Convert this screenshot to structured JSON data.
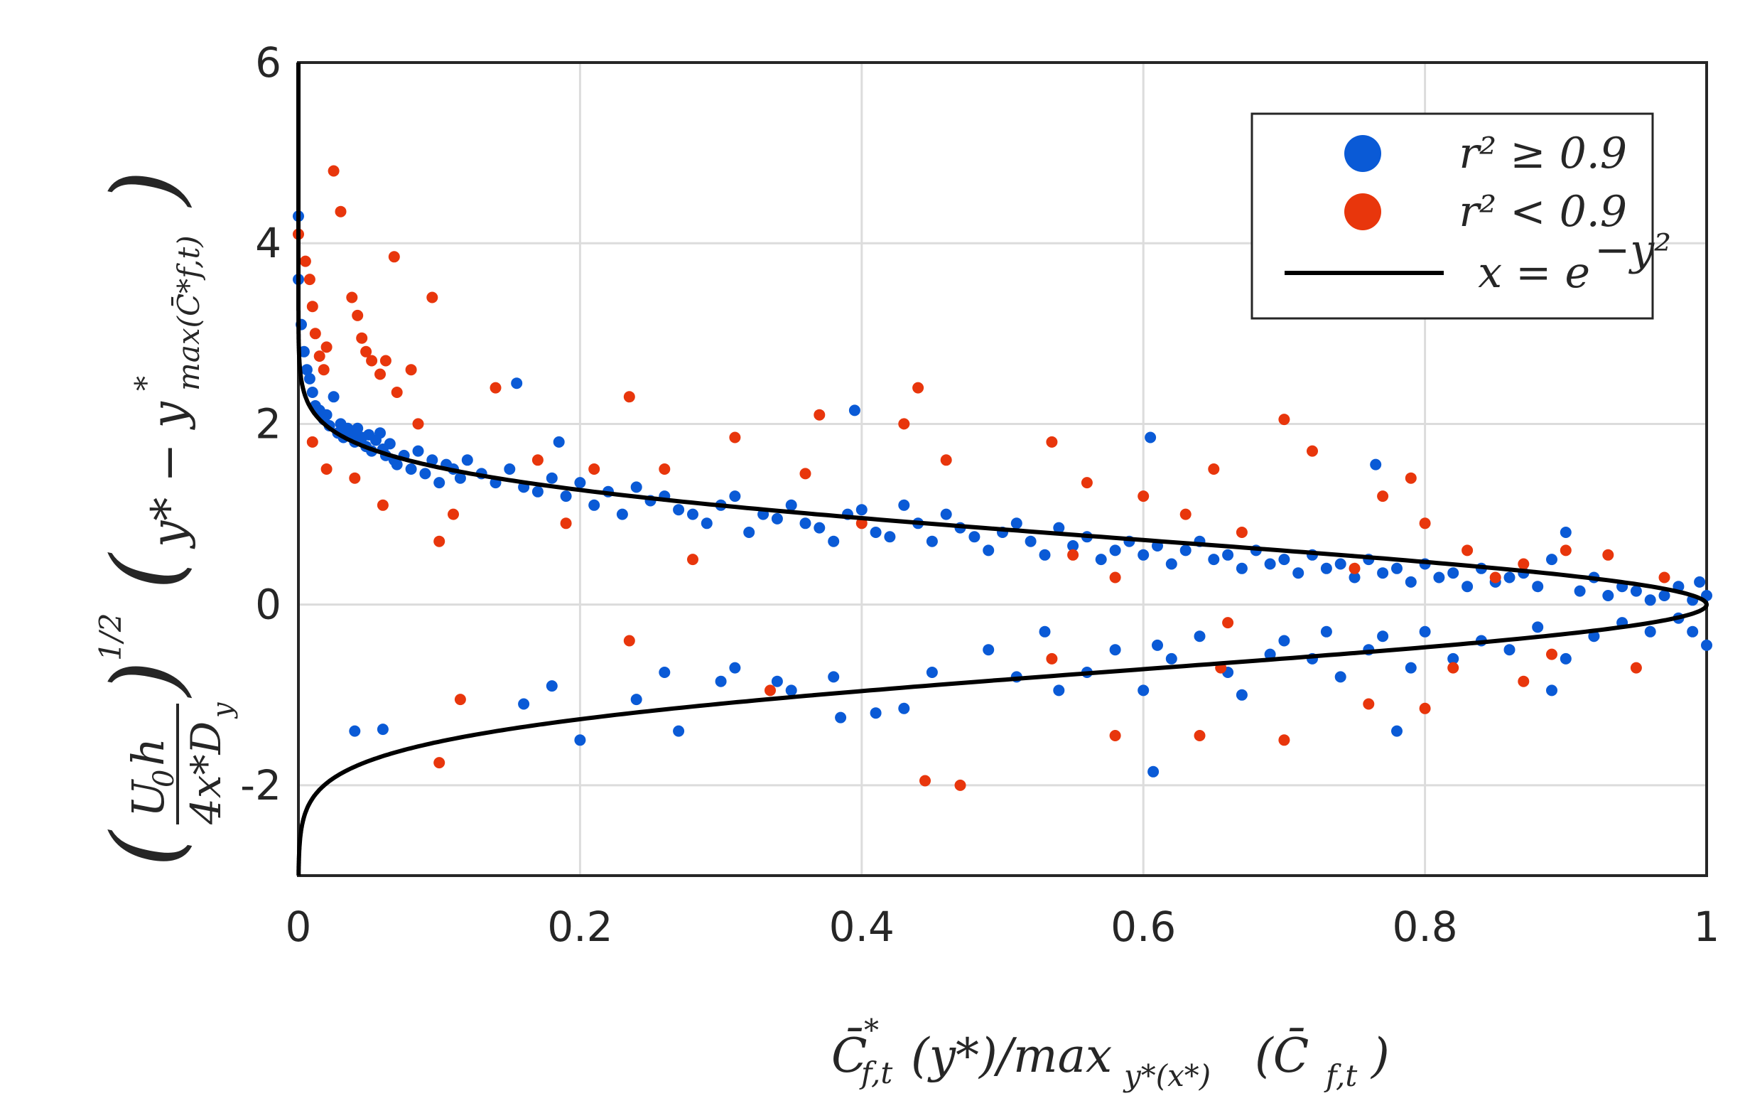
{
  "chart_data": {
    "type": "scatter",
    "title": "",
    "xlabel": "C̄*f,t(y*)/maxy*(x*)(C̄*f,t)",
    "ylabel": "(U0h/(4x*Dy))^1/2 (y* − y*max(C̄*f,t))",
    "xlim": [
      0,
      1
    ],
    "ylim": [
      -3,
      6
    ],
    "grid": true,
    "legend_position": "top-right",
    "x_ticks": [
      "0",
      "0.2",
      "0.4",
      "0.6",
      "0.8",
      "1"
    ],
    "y_ticks": [
      "-2",
      "0",
      "2",
      "4",
      "6"
    ],
    "series": [
      {
        "name": "r² ≥ 0.9",
        "color": "#0a5ad6",
        "marker": "dot",
        "points": [
          [
            0.0,
            4.3
          ],
          [
            0.0,
            3.6
          ],
          [
            0.002,
            3.1
          ],
          [
            0.004,
            2.8
          ],
          [
            0.006,
            2.6
          ],
          [
            0.008,
            2.5
          ],
          [
            0.01,
            2.35
          ],
          [
            0.012,
            2.2
          ],
          [
            0.015,
            2.15
          ],
          [
            0.018,
            2.05
          ],
          [
            0.02,
            2.1
          ],
          [
            0.022,
            1.98
          ],
          [
            0.025,
            2.3
          ],
          [
            0.028,
            1.9
          ],
          [
            0.03,
            2.0
          ],
          [
            0.032,
            1.85
          ],
          [
            0.035,
            1.95
          ],
          [
            0.038,
            1.9
          ],
          [
            0.04,
            1.8
          ],
          [
            0.042,
            1.95
          ],
          [
            0.045,
            1.85
          ],
          [
            0.048,
            1.75
          ],
          [
            0.05,
            1.88
          ],
          [
            0.052,
            1.7
          ],
          [
            0.055,
            1.82
          ],
          [
            0.058,
            1.9
          ],
          [
            0.06,
            1.72
          ],
          [
            0.062,
            1.65
          ],
          [
            0.065,
            1.78
          ],
          [
            0.068,
            1.6
          ],
          [
            0.07,
            1.55
          ],
          [
            0.075,
            1.65
          ],
          [
            0.08,
            1.5
          ],
          [
            0.085,
            1.7
          ],
          [
            0.09,
            1.45
          ],
          [
            0.095,
            1.6
          ],
          [
            0.1,
            1.35
          ],
          [
            0.105,
            1.55
          ],
          [
            0.11,
            1.5
          ],
          [
            0.115,
            1.4
          ],
          [
            0.12,
            1.6
          ],
          [
            0.13,
            1.45
          ],
          [
            0.14,
            1.35
          ],
          [
            0.15,
            1.5
          ],
          [
            0.155,
            2.45
          ],
          [
            0.16,
            1.3
          ],
          [
            0.17,
            1.25
          ],
          [
            0.18,
            1.4
          ],
          [
            0.185,
            1.8
          ],
          [
            0.19,
            1.2
          ],
          [
            0.2,
            1.35
          ],
          [
            0.21,
            1.1
          ],
          [
            0.22,
            1.25
          ],
          [
            0.23,
            1.0
          ],
          [
            0.24,
            1.3
          ],
          [
            0.25,
            1.15
          ],
          [
            0.26,
            1.2
          ],
          [
            0.27,
            1.05
          ],
          [
            0.28,
            1.0
          ],
          [
            0.29,
            0.9
          ],
          [
            0.3,
            1.1
          ],
          [
            0.31,
            1.2
          ],
          [
            0.32,
            0.8
          ],
          [
            0.33,
            1.0
          ],
          [
            0.34,
            0.95
          ],
          [
            0.35,
            1.1
          ],
          [
            0.36,
            0.9
          ],
          [
            0.37,
            0.85
          ],
          [
            0.38,
            0.7
          ],
          [
            0.39,
            1.0
          ],
          [
            0.395,
            2.15
          ],
          [
            0.4,
            1.05
          ],
          [
            0.41,
            0.8
          ],
          [
            0.42,
            0.75
          ],
          [
            0.43,
            1.1
          ],
          [
            0.44,
            0.9
          ],
          [
            0.45,
            0.7
          ],
          [
            0.46,
            1.0
          ],
          [
            0.47,
            0.85
          ],
          [
            0.48,
            0.75
          ],
          [
            0.49,
            0.6
          ],
          [
            0.5,
            0.8
          ],
          [
            0.51,
            0.9
          ],
          [
            0.52,
            0.7
          ],
          [
            0.53,
            0.55
          ],
          [
            0.54,
            0.85
          ],
          [
            0.55,
            0.65
          ],
          [
            0.56,
            0.75
          ],
          [
            0.57,
            0.5
          ],
          [
            0.58,
            0.6
          ],
          [
            0.59,
            0.7
          ],
          [
            0.6,
            0.55
          ],
          [
            0.605,
            1.85
          ],
          [
            0.61,
            0.65
          ],
          [
            0.62,
            0.45
          ],
          [
            0.63,
            0.6
          ],
          [
            0.64,
            0.7
          ],
          [
            0.65,
            0.5
          ],
          [
            0.66,
            0.55
          ],
          [
            0.67,
            0.4
          ],
          [
            0.68,
            0.6
          ],
          [
            0.69,
            0.45
          ],
          [
            0.7,
            0.5
          ],
          [
            0.71,
            0.35
          ],
          [
            0.72,
            0.55
          ],
          [
            0.73,
            0.4
          ],
          [
            0.74,
            0.45
          ],
          [
            0.75,
            0.3
          ],
          [
            0.76,
            0.5
          ],
          [
            0.765,
            1.55
          ],
          [
            0.77,
            0.35
          ],
          [
            0.78,
            0.4
          ],
          [
            0.79,
            0.25
          ],
          [
            0.8,
            0.45
          ],
          [
            0.81,
            0.3
          ],
          [
            0.82,
            0.35
          ],
          [
            0.83,
            0.2
          ],
          [
            0.84,
            0.4
          ],
          [
            0.85,
            0.25
          ],
          [
            0.86,
            0.3
          ],
          [
            0.87,
            0.35
          ],
          [
            0.88,
            0.2
          ],
          [
            0.89,
            0.5
          ],
          [
            0.9,
            0.8
          ],
          [
            0.91,
            0.15
          ],
          [
            0.92,
            0.3
          ],
          [
            0.93,
            0.1
          ],
          [
            0.94,
            0.2
          ],
          [
            0.95,
            0.15
          ],
          [
            0.96,
            0.05
          ],
          [
            0.97,
            0.1
          ],
          [
            0.98,
            0.2
          ],
          [
            0.99,
            0.05
          ],
          [
            1.0,
            0.1
          ],
          [
            0.995,
            0.25
          ],
          [
            0.04,
            -1.4
          ],
          [
            0.06,
            -1.38
          ],
          [
            0.2,
            -1.5
          ],
          [
            0.18,
            -0.9
          ],
          [
            0.16,
            -1.1
          ],
          [
            0.24,
            -1.05
          ],
          [
            0.26,
            -0.75
          ],
          [
            0.27,
            -1.4
          ],
          [
            0.3,
            -0.85
          ],
          [
            0.31,
            -0.7
          ],
          [
            0.34,
            -0.85
          ],
          [
            0.35,
            -0.95
          ],
          [
            0.38,
            -0.8
          ],
          [
            0.385,
            -1.25
          ],
          [
            0.41,
            -1.2
          ],
          [
            0.43,
            -1.15
          ],
          [
            0.45,
            -0.75
          ],
          [
            0.49,
            -0.5
          ],
          [
            0.51,
            -0.8
          ],
          [
            0.53,
            -0.3
          ],
          [
            0.54,
            -0.95
          ],
          [
            0.56,
            -0.75
          ],
          [
            0.58,
            -0.5
          ],
          [
            0.6,
            -0.95
          ],
          [
            0.61,
            -0.45
          ],
          [
            0.62,
            -0.6
          ],
          [
            0.64,
            -0.35
          ],
          [
            0.66,
            -0.75
          ],
          [
            0.67,
            -1.0
          ],
          [
            0.69,
            -0.55
          ],
          [
            0.7,
            -0.4
          ],
          [
            0.72,
            -0.6
          ],
          [
            0.73,
            -0.3
          ],
          [
            0.74,
            -0.8
          ],
          [
            0.76,
            -0.5
          ],
          [
            0.77,
            -0.35
          ],
          [
            0.78,
            -1.4
          ],
          [
            0.79,
            -0.7
          ],
          [
            0.8,
            -0.3
          ],
          [
            0.82,
            -0.6
          ],
          [
            0.84,
            -0.4
          ],
          [
            0.86,
            -0.5
          ],
          [
            0.88,
            -0.25
          ],
          [
            0.9,
            -0.6
          ],
          [
            0.89,
            -0.95
          ],
          [
            0.92,
            -0.35
          ],
          [
            0.94,
            -0.2
          ],
          [
            0.96,
            -0.3
          ],
          [
            0.98,
            -0.15
          ],
          [
            1.0,
            -0.45
          ],
          [
            0.607,
            -1.85
          ],
          [
            0.99,
            -0.3
          ]
        ]
      },
      {
        "name": "r² < 0.9",
        "color": "#e8360c",
        "marker": "dot",
        "points": [
          [
            0.0,
            4.1
          ],
          [
            0.005,
            3.8
          ],
          [
            0.008,
            3.6
          ],
          [
            0.01,
            3.3
          ],
          [
            0.012,
            3.0
          ],
          [
            0.015,
            2.75
          ],
          [
            0.018,
            2.6
          ],
          [
            0.02,
            2.85
          ],
          [
            0.025,
            4.8
          ],
          [
            0.03,
            4.35
          ],
          [
            0.038,
            3.4
          ],
          [
            0.042,
            3.2
          ],
          [
            0.045,
            2.95
          ],
          [
            0.048,
            2.8
          ],
          [
            0.052,
            2.7
          ],
          [
            0.058,
            2.55
          ],
          [
            0.062,
            2.7
          ],
          [
            0.068,
            3.85
          ],
          [
            0.07,
            2.35
          ],
          [
            0.08,
            2.6
          ],
          [
            0.085,
            2.0
          ],
          [
            0.095,
            3.4
          ],
          [
            0.1,
            0.7
          ],
          [
            0.11,
            1.0
          ],
          [
            0.14,
            2.4
          ],
          [
            0.17,
            1.6
          ],
          [
            0.19,
            0.9
          ],
          [
            0.21,
            1.5
          ],
          [
            0.235,
            2.3
          ],
          [
            0.26,
            1.5
          ],
          [
            0.28,
            0.5
          ],
          [
            0.31,
            1.85
          ],
          [
            0.36,
            1.45
          ],
          [
            0.37,
            2.1
          ],
          [
            0.4,
            0.9
          ],
          [
            0.43,
            2.0
          ],
          [
            0.44,
            2.4
          ],
          [
            0.46,
            1.6
          ],
          [
            0.535,
            1.8
          ],
          [
            0.55,
            0.55
          ],
          [
            0.56,
            1.35
          ],
          [
            0.58,
            0.3
          ],
          [
            0.6,
            1.2
          ],
          [
            0.63,
            1.0
          ],
          [
            0.65,
            1.5
          ],
          [
            0.67,
            0.8
          ],
          [
            0.7,
            2.05
          ],
          [
            0.72,
            1.7
          ],
          [
            0.75,
            0.4
          ],
          [
            0.77,
            1.2
          ],
          [
            0.79,
            1.4
          ],
          [
            0.8,
            0.9
          ],
          [
            0.83,
            0.6
          ],
          [
            0.85,
            0.3
          ],
          [
            0.87,
            0.45
          ],
          [
            0.9,
            0.6
          ],
          [
            0.93,
            0.55
          ],
          [
            0.97,
            0.3
          ],
          [
            0.01,
            1.8
          ],
          [
            0.02,
            1.5
          ],
          [
            0.04,
            1.4
          ],
          [
            0.06,
            1.1
          ],
          [
            0.1,
            -1.75
          ],
          [
            0.115,
            -1.05
          ],
          [
            0.235,
            -0.4
          ],
          [
            0.335,
            -0.95
          ],
          [
            0.445,
            -1.95
          ],
          [
            0.47,
            -2.0
          ],
          [
            0.535,
            -0.6
          ],
          [
            0.58,
            -1.45
          ],
          [
            0.64,
            -1.45
          ],
          [
            0.655,
            -0.7
          ],
          [
            0.66,
            -0.2
          ],
          [
            0.7,
            -1.5
          ],
          [
            0.76,
            -1.1
          ],
          [
            0.8,
            -1.15
          ],
          [
            0.82,
            -0.7
          ],
          [
            0.87,
            -0.85
          ],
          [
            0.89,
            -0.55
          ],
          [
            0.95,
            -0.7
          ]
        ]
      },
      {
        "name": "x = e^{-y^2}",
        "color": "#000000",
        "marker": "line",
        "function": "x = exp(-y^2)"
      }
    ]
  },
  "labels": {
    "ylabel_u0h": "U",
    "ylabel_u0h_sub": "0",
    "ylabel_u0h_h": "h",
    "ylabel_den": "4x*D",
    "ylabel_den_sub": "y",
    "ylabel_pow": "1/2",
    "ylabel_bracket": "y* − y",
    "ylabel_bracket_sup": "*",
    "ylabel_bracket_sub": "max(C̄*f,t)",
    "xlabel_main": "C̄",
    "xlabel_sup": "*",
    "xlabel_sub": "f,t",
    "xlabel_mid": "(y*)/max",
    "xlabel_sub2": "y*(x*)",
    "xlabel_end": "(C̄",
    "xlabel_end_sub": "f,t",
    "xlabel_close": ")",
    "legend": [
      "r² ≥ 0.9",
      "r² < 0.9",
      "x = e"
    ],
    "legend_exp": "−y²"
  }
}
